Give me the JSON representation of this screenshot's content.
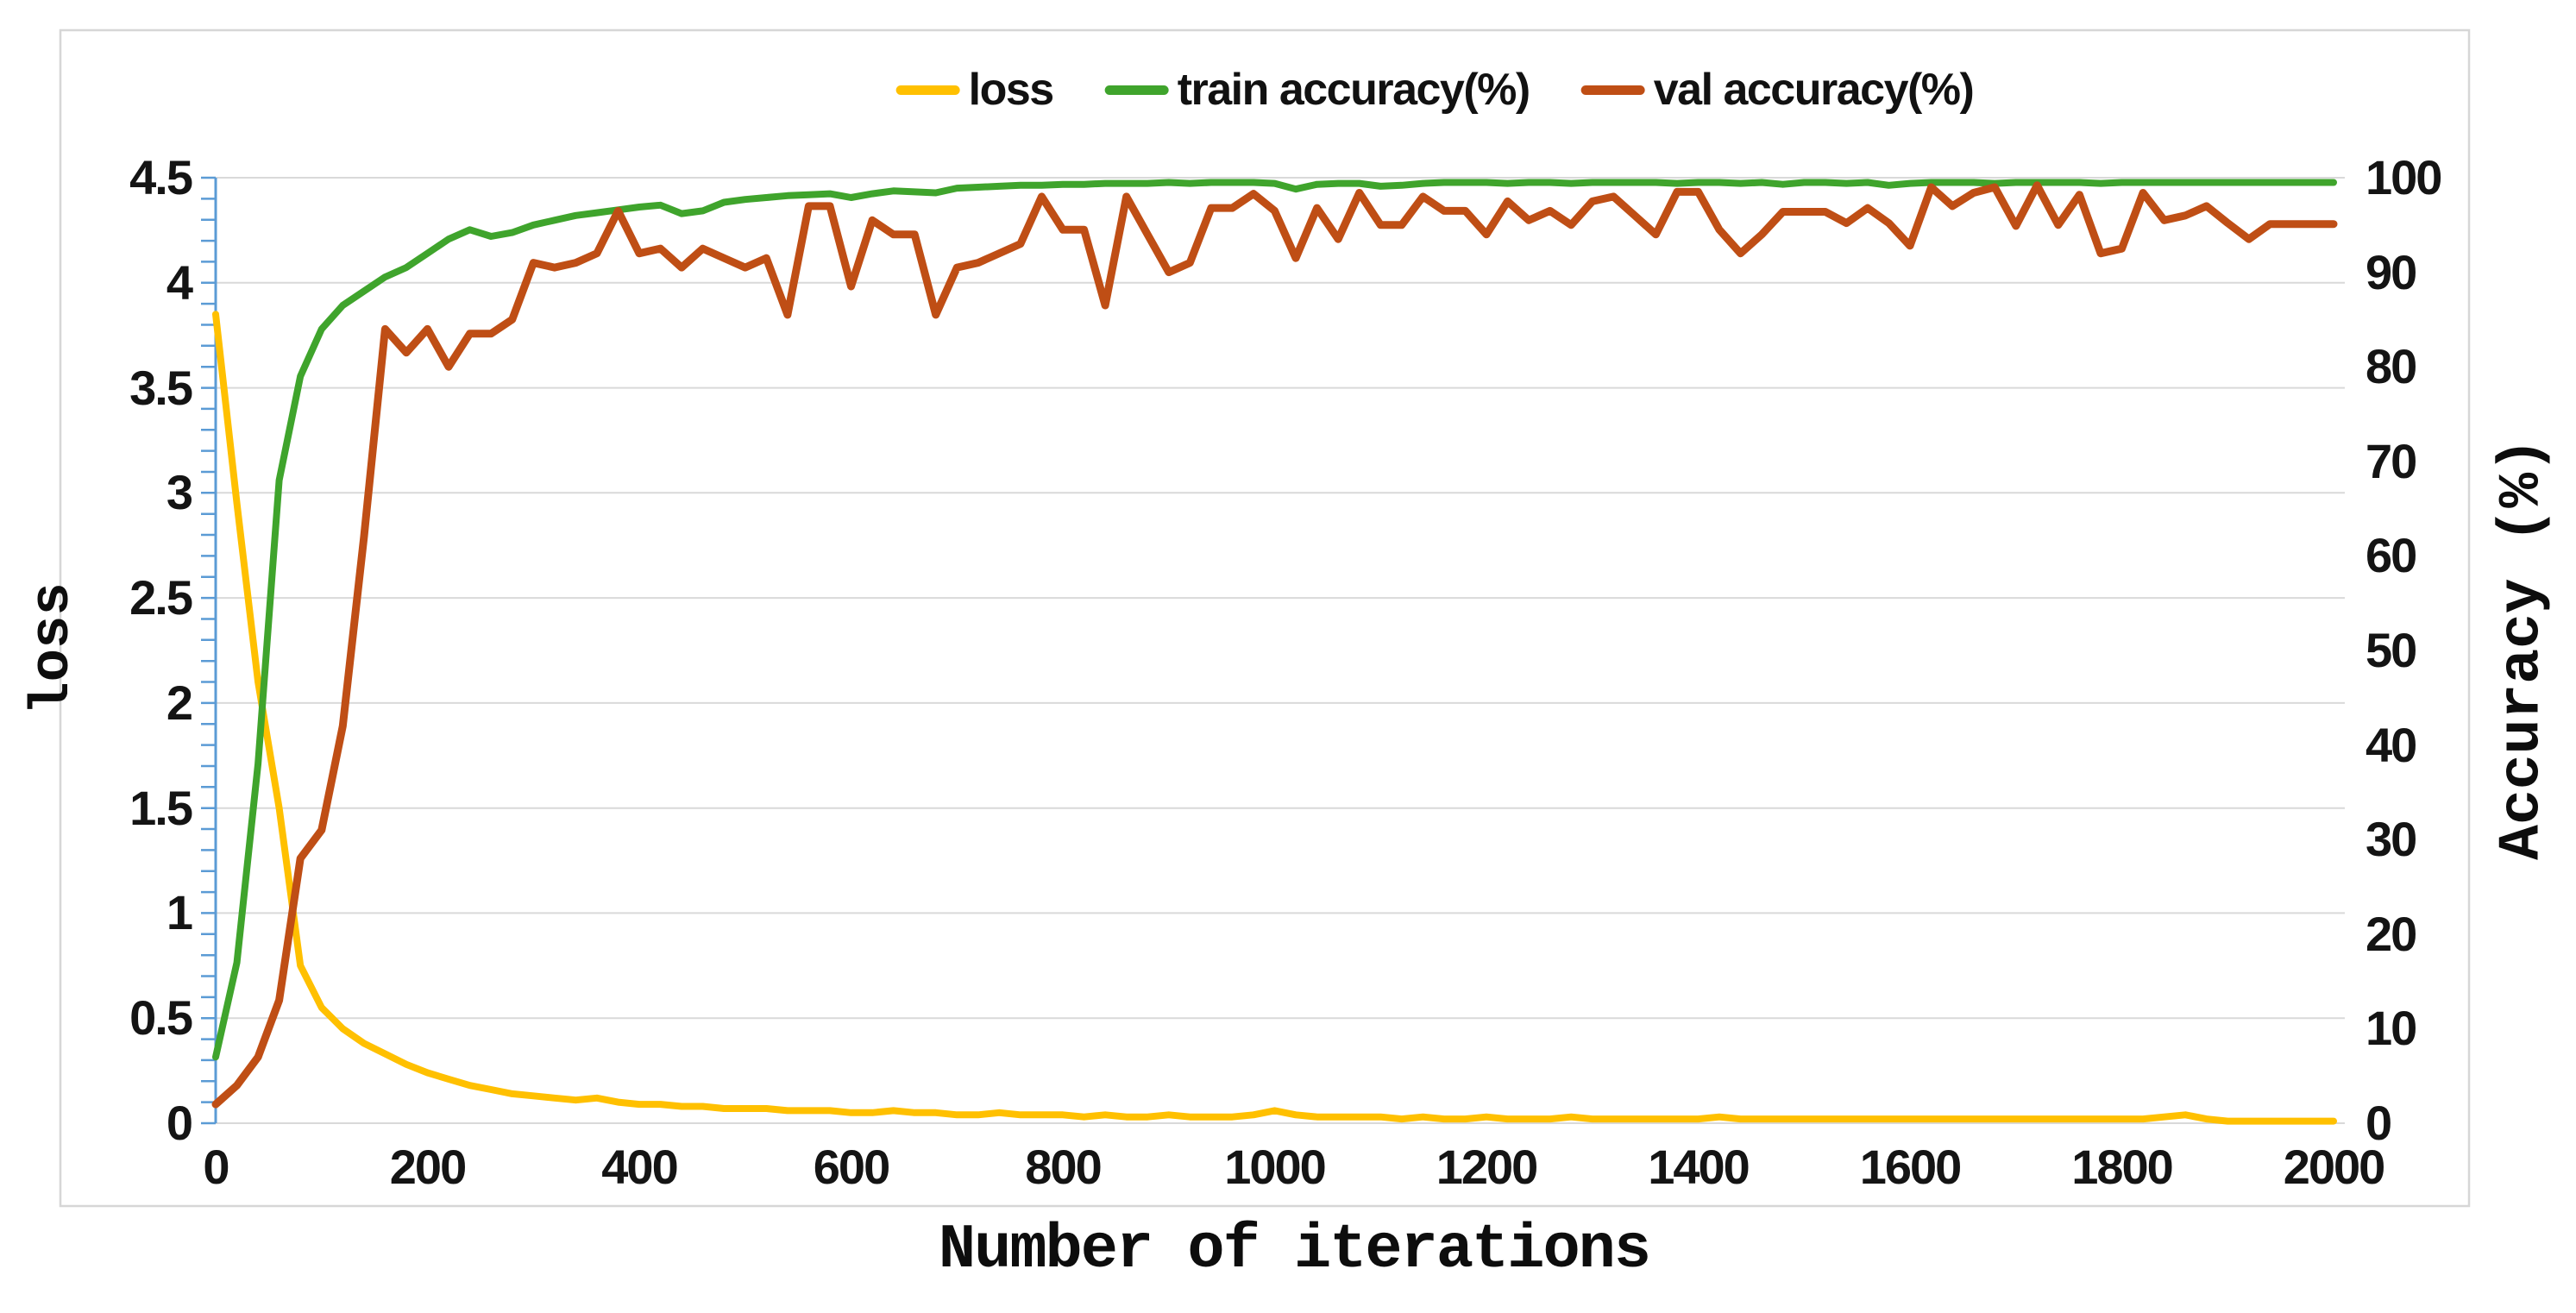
{
  "chart_data": {
    "type": "line",
    "title": "",
    "xlabel": "Number of iterations",
    "ylabel_left": "loss",
    "ylabel_right": "Accuracy (%)",
    "legend_position": "top-center",
    "grid": "horizontal gridlines every 0.5 on left (loss) axis, no vertical gridlines",
    "x": {
      "start": 0,
      "step": 20,
      "count": 101
    },
    "xlim": [
      0,
      2010
    ],
    "ylim_left": [
      0,
      4.5
    ],
    "ylim_right": [
      0,
      100
    ],
    "x_ticks": [
      0,
      200,
      400,
      600,
      800,
      1000,
      1200,
      1400,
      1600,
      1800,
      2000
    ],
    "left_ticks": [
      "0",
      "0.5",
      "1",
      "1.5",
      "2",
      "2.5",
      "3",
      "3.5",
      "4",
      "4.5"
    ],
    "right_ticks": [
      "0",
      "10",
      "20",
      "30",
      "40",
      "50",
      "60",
      "70",
      "80",
      "90",
      "100"
    ],
    "colors": {
      "loss": "#FFC000",
      "train": "#3FA42C",
      "val": "#BF4E15",
      "axis_line": "#5B9BD5",
      "gridline": "#D9D9D9",
      "border": "#D6D6D6",
      "text": "#141414"
    },
    "series": [
      {
        "name": "loss",
        "axis": "left",
        "color": "#FFC000",
        "stroke_width": 8,
        "values": [
          3.85,
          2.95,
          2.1,
          1.5,
          0.75,
          0.55,
          0.45,
          0.38,
          0.33,
          0.28,
          0.24,
          0.21,
          0.18,
          0.16,
          0.14,
          0.13,
          0.12,
          0.11,
          0.12,
          0.1,
          0.09,
          0.09,
          0.08,
          0.08,
          0.07,
          0.07,
          0.07,
          0.06,
          0.06,
          0.06,
          0.05,
          0.05,
          0.06,
          0.05,
          0.05,
          0.04,
          0.04,
          0.05,
          0.04,
          0.04,
          0.04,
          0.03,
          0.04,
          0.03,
          0.03,
          0.04,
          0.03,
          0.03,
          0.03,
          0.04,
          0.06,
          0.04,
          0.03,
          0.03,
          0.03,
          0.03,
          0.02,
          0.03,
          0.02,
          0.02,
          0.03,
          0.02,
          0.02,
          0.02,
          0.03,
          0.02,
          0.02,
          0.02,
          0.02,
          0.02,
          0.02,
          0.03,
          0.02,
          0.02,
          0.02,
          0.02,
          0.02,
          0.02,
          0.02,
          0.02,
          0.02,
          0.02,
          0.02,
          0.02,
          0.02,
          0.02,
          0.02,
          0.02,
          0.02,
          0.02,
          0.02,
          0.02,
          0.03,
          0.04,
          0.02,
          0.01,
          0.01,
          0.01,
          0.01,
          0.01,
          0.01
        ]
      },
      {
        "name": "train accuracy(%)",
        "axis": "right",
        "color": "#3FA42C",
        "stroke_width": 8,
        "values": [
          7,
          17,
          38,
          68,
          79,
          84,
          86.5,
          88,
          89.5,
          90.5,
          92,
          93.5,
          94.5,
          93.8,
          94.2,
          95,
          95.5,
          96,
          96.3,
          96.6,
          96.9,
          97.1,
          96.2,
          96.5,
          97.4,
          97.7,
          97.9,
          98.1,
          98.2,
          98.3,
          97.9,
          98.3,
          98.6,
          98.5,
          98.4,
          98.9,
          99,
          99.1,
          99.2,
          99.2,
          99.3,
          99.3,
          99.4,
          99.4,
          99.4,
          99.5,
          99.4,
          99.5,
          99.5,
          99.5,
          99.4,
          98.8,
          99.3,
          99.4,
          99.4,
          99.1,
          99.2,
          99.4,
          99.5,
          99.5,
          99.5,
          99.4,
          99.5,
          99.5,
          99.4,
          99.5,
          99.5,
          99.5,
          99.5,
          99.4,
          99.5,
          99.5,
          99.4,
          99.5,
          99.3,
          99.5,
          99.5,
          99.4,
          99.5,
          99.2,
          99.4,
          99.5,
          99.5,
          99.5,
          99.4,
          99.5,
          99.5,
          99.5,
          99.5,
          99.4,
          99.5,
          99.5,
          99.5,
          99.5,
          99.5,
          99.5,
          99.5,
          99.5,
          99.5,
          99.5,
          99.5
        ]
      },
      {
        "name": "val accuracy(%)",
        "axis": "right",
        "color": "#BF4E15",
        "stroke_width": 9,
        "values": [
          2,
          4,
          7,
          13,
          28,
          31,
          42,
          62,
          84,
          81.5,
          84,
          80,
          83.5,
          83.5,
          85,
          91,
          90.5,
          91,
          92,
          96.5,
          92,
          92.5,
          90.5,
          92.5,
          91.5,
          90.5,
          91.5,
          85.5,
          97,
          97,
          88.5,
          95.5,
          94,
          94,
          85.5,
          90.5,
          91,
          92,
          93,
          98,
          94.5,
          94.5,
          86.5,
          98,
          94,
          90,
          91,
          96.8,
          96.8,
          98.3,
          96.5,
          91.5,
          96.8,
          93.5,
          98.4,
          95,
          95,
          98,
          96.5,
          96.5,
          94,
          97.5,
          95.5,
          96.5,
          95,
          97.5,
          98,
          96,
          94,
          98.5,
          98.5,
          94.5,
          92,
          94,
          96.4,
          96.4,
          96.4,
          95.2,
          96.8,
          95.2,
          92.8,
          99,
          97,
          98.4,
          99,
          94.9,
          99.2,
          95,
          98.2,
          92,
          92.5,
          98.4,
          95.5,
          96,
          97,
          95.2,
          93.5,
          95.1,
          95.1,
          95.1,
          95.1
        ]
      }
    ],
    "legend": [
      {
        "label": "loss",
        "color": "#FFC000"
      },
      {
        "label": "train accuracy(%)",
        "color": "#3FA42C"
      },
      {
        "label": "val accuracy(%)",
        "color": "#BF4E15"
      }
    ]
  },
  "axis_titles": {
    "x": "Number of iterations",
    "left": "loss",
    "right": "Accuracy (%)"
  }
}
